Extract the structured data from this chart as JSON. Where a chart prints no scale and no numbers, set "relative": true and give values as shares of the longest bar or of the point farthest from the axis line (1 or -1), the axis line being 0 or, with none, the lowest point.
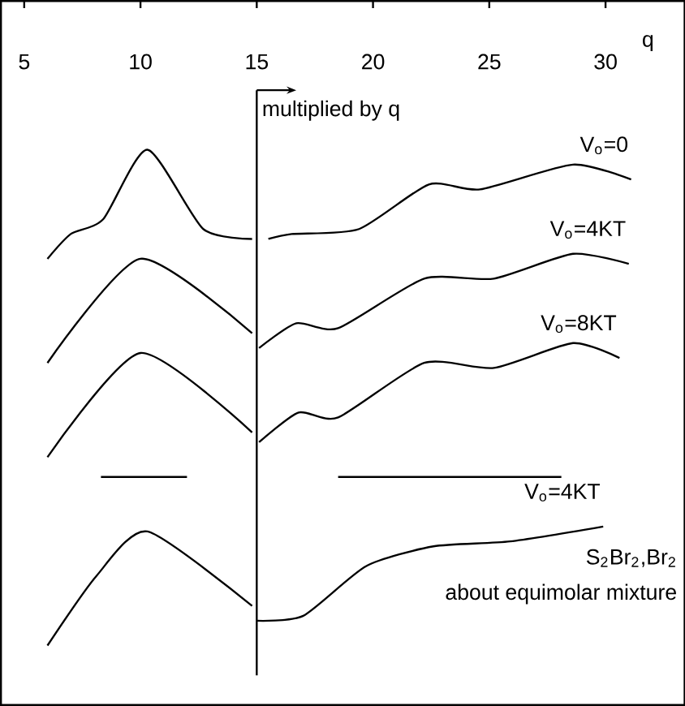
{
  "chart_data": {
    "type": "line",
    "relative": true,
    "xlabel": "q",
    "xlim": [
      4,
      33.4
    ],
    "xticks": [
      5,
      10,
      15,
      20,
      25,
      30
    ],
    "tick_labels": "x",
    "grid": false,
    "marker": "none",
    "line_style": "solid",
    "series": [
      {
        "name": "V$_{o}$=0",
        "color": "#000000",
        "x": [
          6.0,
          7.0,
          8.4,
          10.3,
          12.7,
          14.8,
          14.9,
          15.5,
          16.5,
          19.4,
          22.4,
          24.6,
          28.6,
          31.1
        ],
        "values": [
          0.78,
          0.83,
          0.86,
          1.0,
          0.84,
          0.82,
          null,
          0.82,
          0.83,
          0.84,
          0.93,
          0.92,
          0.97,
          0.94
        ]
      },
      {
        "name": "V$_{o}$=4KT",
        "color": "#000000",
        "x": [
          6.0,
          10.0,
          14.8,
          14.9,
          15.1,
          16.7,
          18.5,
          22.2,
          25.2,
          28.6,
          31.0
        ],
        "values": [
          0.57,
          0.78,
          0.63,
          null,
          0.6,
          0.65,
          0.64,
          0.74,
          0.74,
          0.79,
          0.77
        ]
      },
      {
        "name": "V$_{o}$=8KT",
        "color": "#000000",
        "x": [
          6.0,
          10.0,
          14.8,
          14.9,
          15.1,
          16.8,
          18.5,
          22.2,
          25.2,
          28.6,
          30.6
        ],
        "values": [
          0.38,
          0.59,
          0.43,
          null,
          0.41,
          0.47,
          0.46,
          0.57,
          0.56,
          0.61,
          0.58
        ]
      },
      {
        "color": "#000000",
        "x": [
          8.3,
          12.0
        ],
        "values": [
          0.34,
          0.34
        ]
      },
      {
        "color": "#000000",
        "x": [
          18.5,
          28.1
        ],
        "values": [
          0.34,
          0.34
        ]
      },
      {
        "name": "V$_{o}$=4KT",
        "color": "#000000",
        "x": [
          6.0,
          8.1,
          10.3,
          14.8,
          14.9,
          15.0,
          17.0,
          19.7,
          22.6,
          25.9,
          29.9
        ],
        "values": [
          0.0,
          0.14,
          0.23,
          0.08,
          null,
          0.05,
          0.06,
          0.16,
          0.2,
          0.21,
          0.24
        ]
      }
    ],
    "ref_lines": [
      {
        "axis": "x",
        "value": 15,
        "color": "#000000"
      }
    ],
    "annotations": [
      "multiplied by q",
      "S$_{2}$Br$_{2}$,Br$_{2}$",
      "about equimolar mixture"
    ]
  }
}
